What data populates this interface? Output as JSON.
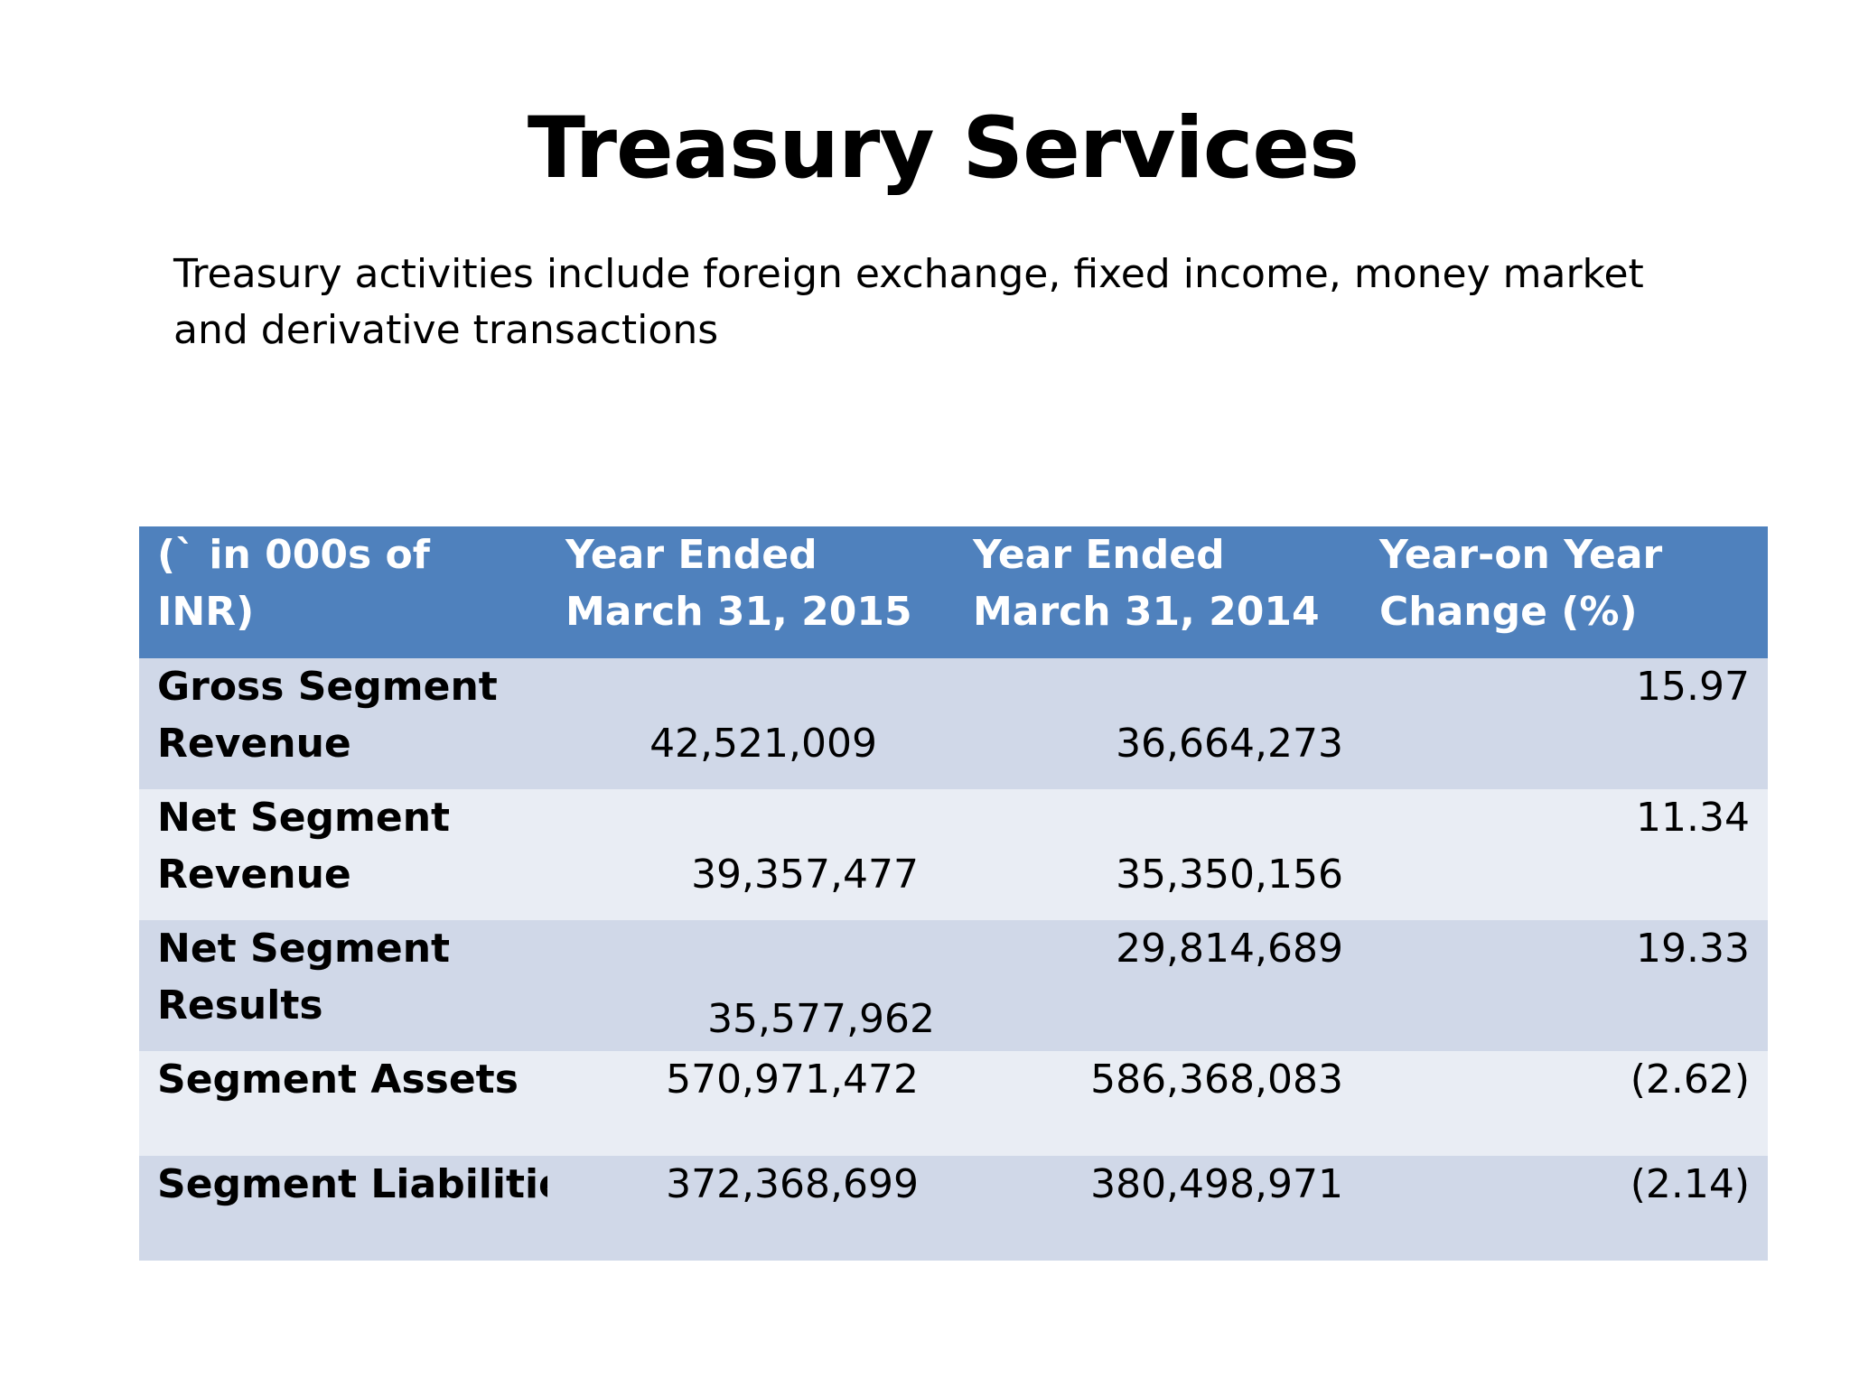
{
  "title": "Treasury Services",
  "subtitle": "Treasury activities include foreign exchange, fixed income, money market and derivative transactions",
  "table": {
    "headers": [
      [
        "(` in 000s of INR)"
      ],
      [
        "Year Ended",
        "March 31, 2015"
      ],
      [
        "Year Ended",
        "March 31, 2014"
      ],
      [
        "Year-on Year",
        "Change (%)"
      ]
    ],
    "rows": [
      {
        "label": [
          "Gross Segment",
          "Revenue"
        ],
        "fy2015": "42,521,009",
        "fy2014": "36,664,273",
        "change": "15.97"
      },
      {
        "label": [
          "Net Segment",
          "Revenue"
        ],
        "fy2015": "39,357,477",
        "fy2014": "35,350,156",
        "change": "11.34"
      },
      {
        "label": [
          "Net Segment",
          "Results"
        ],
        "fy2015": "35,577,962",
        "fy2014": "29,814,689",
        "change": "19.33"
      },
      {
        "label": [
          "Segment Assets"
        ],
        "fy2015": "570,971,472",
        "fy2014": "586,368,083",
        "change": "(2.62)"
      },
      {
        "label": [
          "Segment Liabilities"
        ],
        "fy2015": "372,368,699",
        "fy2014": "380,498,971",
        "change": "(2.14)"
      }
    ]
  }
}
